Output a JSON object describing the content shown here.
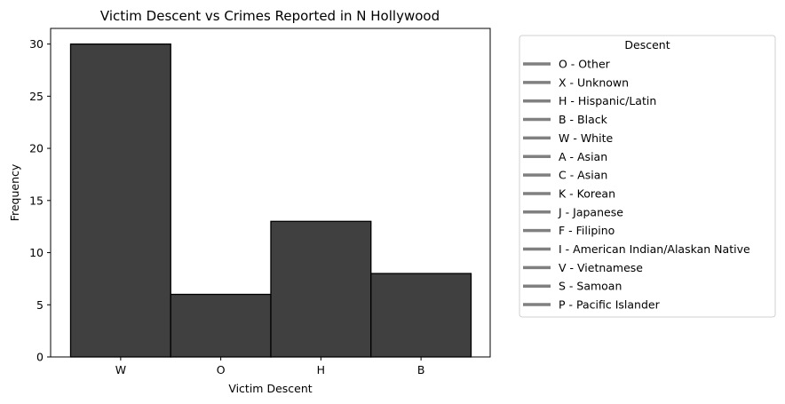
{
  "chart_data": {
    "type": "bar",
    "title": "Victim Descent vs Crimes Reported in N Hollywood",
    "xlabel": "Victim Descent",
    "ylabel": "Frequency",
    "categories": [
      "W",
      "O",
      "H",
      "B"
    ],
    "values": [
      30,
      6,
      13,
      8
    ],
    "ylim": [
      0,
      31.5
    ],
    "yticks": [
      0,
      5,
      10,
      15,
      20,
      25,
      30
    ],
    "bar_color": "#404040",
    "bar_edge_color": "#000000",
    "grid": false,
    "legend": {
      "title": "Descent",
      "placement": "outside-right",
      "line_color": "#808080",
      "entries": [
        "O - Other",
        "X - Unknown",
        "H - Hispanic/Latin",
        "B - Black",
        "W - White",
        "A - Asian",
        "C - Asian",
        "K - Korean",
        "J - Japanese",
        "F - Filipino",
        "I - American Indian/Alaskan Native",
        "V - Vietnamese",
        "S - Samoan",
        "P - Pacific Islander"
      ]
    }
  }
}
